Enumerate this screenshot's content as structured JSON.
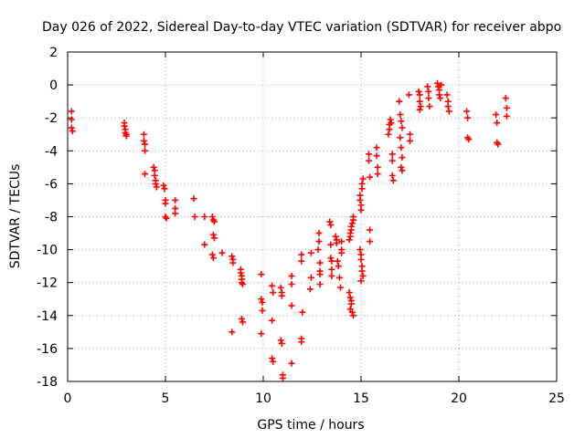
{
  "chart_data": {
    "type": "scatter",
    "title": "Day 026 of 2022, Sidereal Day-to-day VTEC variation (SDTVAR) for receiver abpo",
    "xlabel": "GPS time / hours",
    "ylabel": "SDTVAR / TECUs",
    "xlim": [
      0,
      25
    ],
    "ylim": [
      -18,
      2
    ],
    "xticks": [
      0,
      5,
      10,
      15,
      20,
      25
    ],
    "yticks": [
      2,
      0,
      -2,
      -4,
      -6,
      -8,
      -10,
      -12,
      -14,
      -16,
      -18
    ],
    "grid": true,
    "legend": "none",
    "marker": "plus",
    "color": "#ff0000",
    "series": [
      {
        "name": "SDTVAR",
        "points": [
          [
            0.2,
            -1.6
          ],
          [
            0.2,
            -2.1
          ],
          [
            0.2,
            -2.6
          ],
          [
            0.25,
            -2.8
          ],
          [
            2.9,
            -2.3
          ],
          [
            2.9,
            -2.5
          ],
          [
            2.95,
            -2.7
          ],
          [
            2.95,
            -2.9
          ],
          [
            3.0,
            -3.0
          ],
          [
            3.0,
            -3.1
          ],
          [
            3.9,
            -3.0
          ],
          [
            3.9,
            -3.4
          ],
          [
            3.95,
            -3.6
          ],
          [
            3.95,
            -4.0
          ],
          [
            3.95,
            -5.4
          ],
          [
            4.4,
            -5.0
          ],
          [
            4.45,
            -5.2
          ],
          [
            4.45,
            -5.5
          ],
          [
            4.5,
            -5.8
          ],
          [
            4.5,
            -6.0
          ],
          [
            4.55,
            -6.2
          ],
          [
            4.9,
            -6.1
          ],
          [
            4.95,
            -6.3
          ],
          [
            5.0,
            -7.0
          ],
          [
            5.0,
            -7.2
          ],
          [
            5.0,
            -8.0
          ],
          [
            5.05,
            -8.1
          ],
          [
            5.5,
            -7.0
          ],
          [
            5.5,
            -7.5
          ],
          [
            5.5,
            -7.8
          ],
          [
            6.45,
            -6.9
          ],
          [
            6.5,
            -8.0
          ],
          [
            7.0,
            -8.0
          ],
          [
            7.0,
            -9.7
          ],
          [
            7.4,
            -8.0
          ],
          [
            7.45,
            -8.2
          ],
          [
            7.5,
            -8.3
          ],
          [
            7.45,
            -9.1
          ],
          [
            7.5,
            -9.3
          ],
          [
            7.4,
            -10.3
          ],
          [
            7.45,
            -10.5
          ],
          [
            7.9,
            -10.2
          ],
          [
            8.4,
            -10.4
          ],
          [
            8.45,
            -10.6
          ],
          [
            8.45,
            -10.8
          ],
          [
            8.4,
            -15.0
          ],
          [
            8.85,
            -11.2
          ],
          [
            8.85,
            -11.4
          ],
          [
            8.9,
            -11.6
          ],
          [
            8.9,
            -11.8
          ],
          [
            8.9,
            -12.0
          ],
          [
            8.95,
            -12.1
          ],
          [
            8.9,
            -14.2
          ],
          [
            8.95,
            -14.4
          ],
          [
            9.9,
            -11.5
          ],
          [
            9.9,
            -13.0
          ],
          [
            9.95,
            -13.2
          ],
          [
            9.95,
            -13.7
          ],
          [
            9.9,
            -15.1
          ],
          [
            10.45,
            -12.2
          ],
          [
            10.5,
            -12.6
          ],
          [
            10.45,
            -14.3
          ],
          [
            10.45,
            -16.6
          ],
          [
            10.5,
            -16.8
          ],
          [
            10.9,
            -12.3
          ],
          [
            10.95,
            -12.6
          ],
          [
            10.95,
            -12.8
          ],
          [
            10.9,
            -15.5
          ],
          [
            10.95,
            -15.7
          ],
          [
            11.0,
            -17.6
          ],
          [
            11.0,
            -17.8
          ],
          [
            11.45,
            -11.6
          ],
          [
            11.45,
            -12.1
          ],
          [
            11.45,
            -13.4
          ],
          [
            11.45,
            -16.9
          ],
          [
            11.95,
            -10.3
          ],
          [
            11.95,
            -10.7
          ],
          [
            12.0,
            -13.8
          ],
          [
            11.95,
            -15.4
          ],
          [
            11.95,
            -15.6
          ],
          [
            12.45,
            -10.2
          ],
          [
            12.45,
            -11.7
          ],
          [
            12.4,
            -12.4
          ],
          [
            12.8,
            -10.0
          ],
          [
            12.85,
            -9.5
          ],
          [
            12.85,
            -9.0
          ],
          [
            12.9,
            -10.8
          ],
          [
            12.9,
            -11.3
          ],
          [
            12.9,
            -11.5
          ],
          [
            12.9,
            -12.1
          ],
          [
            13.4,
            -8.3
          ],
          [
            13.45,
            -8.5
          ],
          [
            13.45,
            -9.7
          ],
          [
            13.45,
            -10.5
          ],
          [
            13.5,
            -10.7
          ],
          [
            13.5,
            -11.2
          ],
          [
            13.5,
            -11.6
          ],
          [
            13.7,
            -9.2
          ],
          [
            13.75,
            -9.4
          ],
          [
            13.75,
            -9.6
          ],
          [
            13.8,
            -10.7
          ],
          [
            13.85,
            -11.0
          ],
          [
            13.9,
            -11.7
          ],
          [
            13.95,
            -12.3
          ],
          [
            14.0,
            -9.5
          ],
          [
            14.0,
            -10.0
          ],
          [
            14.0,
            -10.2
          ],
          [
            14.4,
            -9.4
          ],
          [
            14.45,
            -9.2
          ],
          [
            14.45,
            -9.0
          ],
          [
            14.5,
            -8.8
          ],
          [
            14.5,
            -8.6
          ],
          [
            14.55,
            -8.4
          ],
          [
            14.6,
            -8.2
          ],
          [
            14.6,
            -8.0
          ],
          [
            14.4,
            -12.6
          ],
          [
            14.45,
            -12.9
          ],
          [
            14.5,
            -13.1
          ],
          [
            14.5,
            -13.3
          ],
          [
            14.45,
            -13.6
          ],
          [
            14.55,
            -13.8
          ],
          [
            14.6,
            -14.0
          ],
          [
            14.95,
            -6.7
          ],
          [
            14.95,
            -7.0
          ],
          [
            15.0,
            -7.3
          ],
          [
            15.0,
            -7.6
          ],
          [
            15.05,
            -6.3
          ],
          [
            15.05,
            -6.0
          ],
          [
            15.1,
            -5.7
          ],
          [
            14.95,
            -10.0
          ],
          [
            15.0,
            -10.3
          ],
          [
            15.0,
            -10.6
          ],
          [
            15.05,
            -11.0
          ],
          [
            15.05,
            -11.3
          ],
          [
            15.1,
            -11.6
          ],
          [
            15.0,
            -11.9
          ],
          [
            15.4,
            -4.2
          ],
          [
            15.4,
            -4.6
          ],
          [
            15.45,
            -5.6
          ],
          [
            15.45,
            -8.8
          ],
          [
            15.45,
            -9.5
          ],
          [
            15.8,
            -3.8
          ],
          [
            15.8,
            -4.3
          ],
          [
            15.85,
            -5.0
          ],
          [
            15.85,
            -5.4
          ],
          [
            16.4,
            -3.0
          ],
          [
            16.45,
            -2.7
          ],
          [
            16.45,
            -2.4
          ],
          [
            16.5,
            -2.1
          ],
          [
            16.55,
            -2.3
          ],
          [
            16.6,
            -4.2
          ],
          [
            16.6,
            -4.6
          ],
          [
            16.65,
            -5.8
          ],
          [
            16.6,
            -5.5
          ],
          [
            16.95,
            -1.0
          ],
          [
            17.0,
            -1.8
          ],
          [
            17.05,
            -2.2
          ],
          [
            17.1,
            -2.6
          ],
          [
            17.0,
            -3.2
          ],
          [
            17.05,
            -3.8
          ],
          [
            17.1,
            -4.4
          ],
          [
            17.05,
            -5.0
          ],
          [
            17.1,
            -5.2
          ],
          [
            17.45,
            -0.6
          ],
          [
            17.5,
            -3.0
          ],
          [
            17.5,
            -3.4
          ],
          [
            17.95,
            -0.4
          ],
          [
            18.0,
            -0.6
          ],
          [
            18.0,
            -1.0
          ],
          [
            18.05,
            -1.3
          ],
          [
            18.0,
            -1.5
          ],
          [
            18.4,
            -0.1
          ],
          [
            18.45,
            -0.4
          ],
          [
            18.45,
            -0.8
          ],
          [
            18.5,
            -1.3
          ],
          [
            18.9,
            0.1
          ],
          [
            18.95,
            -0.1
          ],
          [
            19.0,
            -0.3
          ],
          [
            19.0,
            -0.6
          ],
          [
            19.05,
            -0.8
          ],
          [
            19.1,
            0.0
          ],
          [
            19.4,
            -0.6
          ],
          [
            19.45,
            -1.0
          ],
          [
            19.45,
            -1.3
          ],
          [
            19.5,
            -1.6
          ],
          [
            20.4,
            -1.6
          ],
          [
            20.45,
            -2.0
          ],
          [
            20.45,
            -3.2
          ],
          [
            20.5,
            -3.3
          ],
          [
            21.9,
            -1.8
          ],
          [
            21.95,
            -2.3
          ],
          [
            21.95,
            -3.5
          ],
          [
            22.0,
            -3.6
          ],
          [
            22.4,
            -0.8
          ],
          [
            22.45,
            -1.4
          ],
          [
            22.45,
            -1.9
          ]
        ]
      }
    ]
  }
}
